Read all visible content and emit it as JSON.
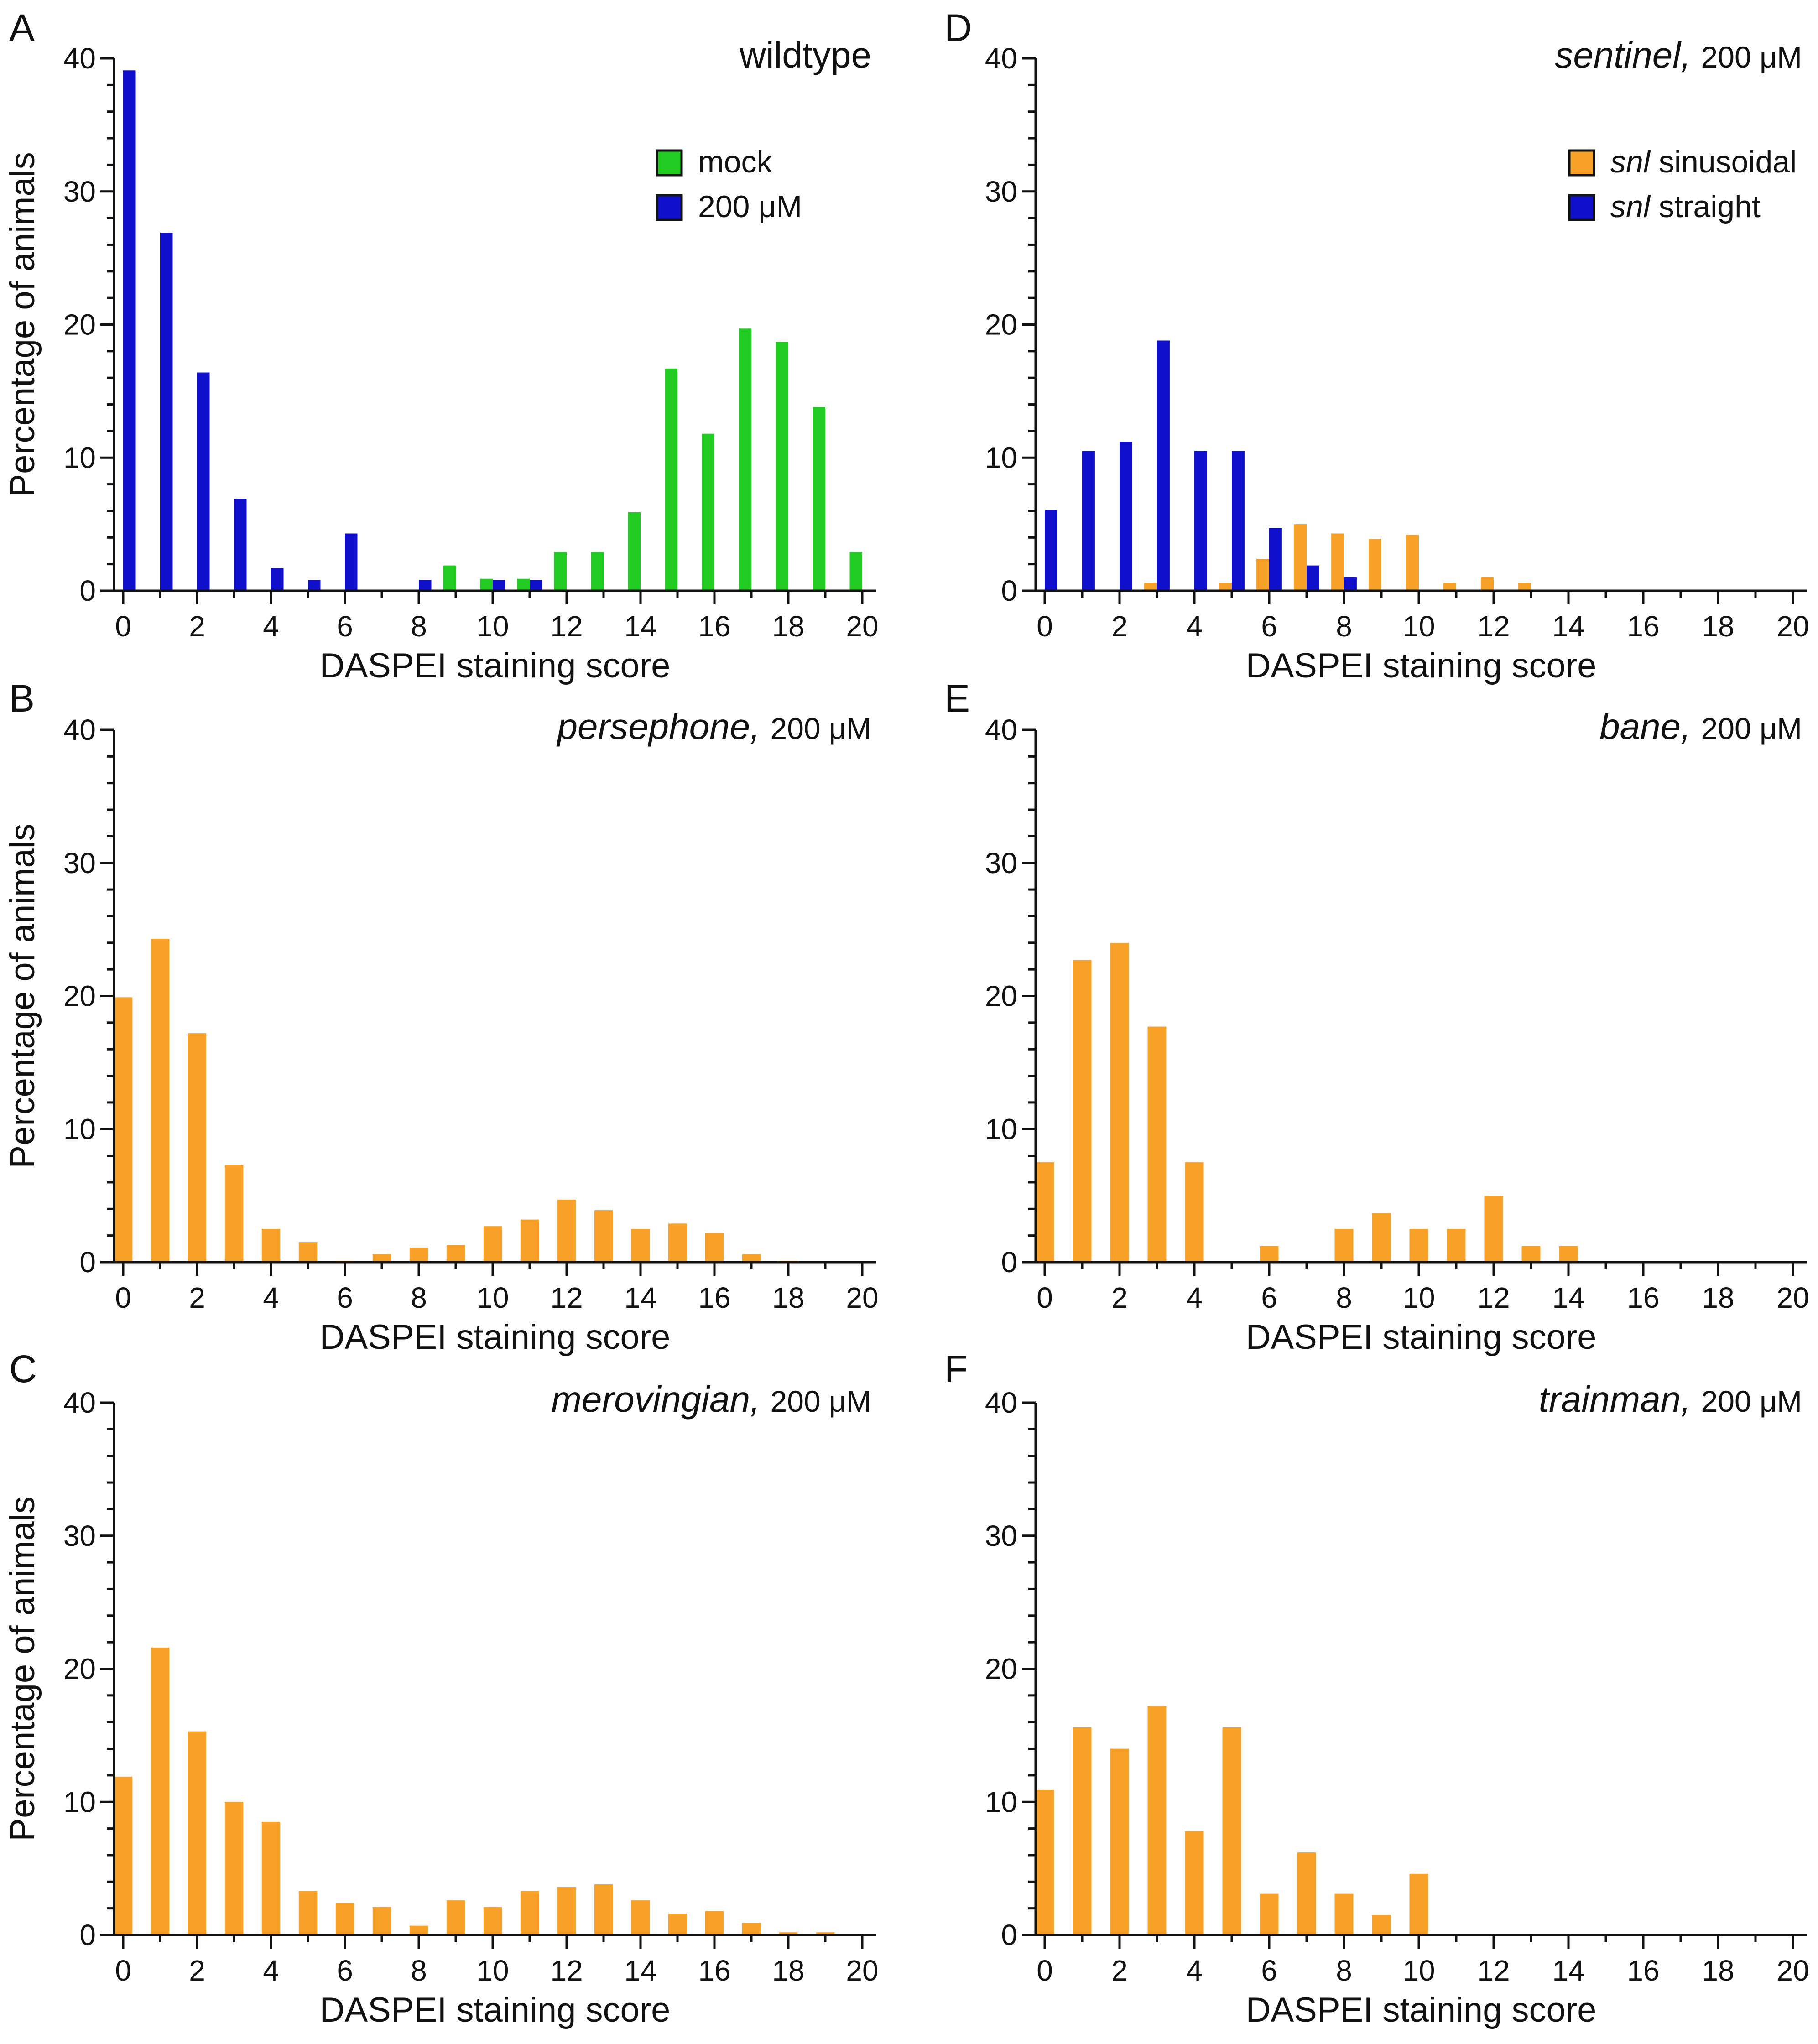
{
  "chart_data": [
    {
      "panel": "A",
      "type": "bar",
      "title_italic": "",
      "title_plain": "wildtype",
      "xlabel": "DASPEI staining score",
      "ylabel": "Percentage of animals",
      "xlim": [
        0,
        20
      ],
      "ylim": [
        0,
        40
      ],
      "xticks": [
        "0",
        "2",
        "4",
        "6",
        "8",
        "10",
        "12",
        "14",
        "16",
        "18",
        "20"
      ],
      "yticks": [
        "0",
        "10",
        "20",
        "30",
        "40"
      ],
      "legend": "top-right",
      "series": [
        {
          "name": "mock",
          "color": "#22cc22",
          "legend_italic": "",
          "legend_plain": "mock",
          "values": [
            0,
            0,
            0,
            0,
            0,
            0,
            0,
            0,
            0,
            1.9,
            0.9,
            0.9,
            2.9,
            2.9,
            5.9,
            16.7,
            11.8,
            19.7,
            18.7,
            13.8,
            2.9
          ]
        },
        {
          "name": "200 μM",
          "color": "#1010cc",
          "legend_italic": "",
          "legend_plain": "200 μM",
          "values": [
            39.1,
            26.9,
            16.4,
            6.9,
            1.7,
            0.8,
            4.3,
            0,
            0.8,
            0,
            0.8,
            0.8,
            0,
            0,
            0,
            0,
            0,
            0,
            0,
            0,
            0
          ]
        }
      ]
    },
    {
      "panel": "B",
      "type": "bar",
      "title_italic": "persephone,",
      "title_plain": "200 μM",
      "xlabel": "DASPEI staining score",
      "ylabel": "Percentage of animals",
      "xlim": [
        0,
        20
      ],
      "ylim": [
        0,
        40
      ],
      "xticks": [
        "0",
        "2",
        "4",
        "6",
        "8",
        "10",
        "12",
        "14",
        "16",
        "18",
        "20"
      ],
      "yticks": [
        "0",
        "10",
        "20",
        "30",
        "40"
      ],
      "series": [
        {
          "color": "#f7a128",
          "values": [
            19.9,
            24.3,
            17.2,
            7.3,
            2.5,
            1.5,
            0.1,
            0.6,
            1.1,
            1.3,
            2.7,
            3.2,
            4.7,
            3.9,
            2.5,
            2.9,
            2.2,
            0.6,
            0.1,
            0,
            0
          ]
        }
      ]
    },
    {
      "panel": "C",
      "type": "bar",
      "title_italic": "merovingian,",
      "title_plain": "200 μM",
      "xlabel": "DASPEI staining score",
      "ylabel": "Percentage of animals",
      "xlim": [
        0,
        20
      ],
      "ylim": [
        0,
        40
      ],
      "xticks": [
        "0",
        "2",
        "4",
        "6",
        "8",
        "10",
        "12",
        "14",
        "16",
        "18",
        "20"
      ],
      "yticks": [
        "0",
        "10",
        "20",
        "30",
        "40"
      ],
      "series": [
        {
          "color": "#f7a128",
          "values": [
            11.9,
            21.6,
            15.3,
            10.0,
            8.5,
            3.3,
            2.4,
            2.1,
            0.7,
            2.6,
            2.1,
            3.3,
            3.6,
            3.8,
            2.6,
            1.6,
            1.8,
            0.9,
            0.2,
            0.2,
            0
          ]
        }
      ]
    },
    {
      "panel": "D",
      "type": "bar",
      "title_italic": "sentinel,",
      "title_plain": "200 μM",
      "xlabel": "DASPEI staining score",
      "ylabel": "",
      "xlim": [
        0,
        20
      ],
      "ylim": [
        0,
        40
      ],
      "xticks": [
        "0",
        "2",
        "4",
        "6",
        "8",
        "10",
        "12",
        "14",
        "16",
        "18",
        "20"
      ],
      "yticks": [
        "0",
        "10",
        "20",
        "30",
        "40"
      ],
      "legend": "top-right",
      "series": [
        {
          "name": "snl sinusoidal",
          "color": "#f7a128",
          "legend_italic": "snl",
          "legend_plain": "sinusoidal",
          "values": [
            0,
            0,
            0,
            0.6,
            0,
            0.6,
            2.4,
            5.0,
            4.3,
            3.9,
            4.2,
            0.6,
            1.0,
            0.6,
            0,
            0,
            0,
            0,
            0,
            0,
            0
          ]
        },
        {
          "name": "snl straight",
          "color": "#1010cc",
          "legend_italic": "snl",
          "legend_plain": "straight",
          "values": [
            6.1,
            10.5,
            11.2,
            18.8,
            10.5,
            10.5,
            4.7,
            1.9,
            1.0,
            0,
            0,
            0,
            0,
            0,
            0,
            0,
            0,
            0,
            0,
            0,
            0
          ]
        }
      ]
    },
    {
      "panel": "E",
      "type": "bar",
      "title_italic": "bane,",
      "title_plain": "200 μM",
      "xlabel": "DASPEI staining score",
      "ylabel": "",
      "xlim": [
        0,
        20
      ],
      "ylim": [
        0,
        40
      ],
      "xticks": [
        "0",
        "2",
        "4",
        "6",
        "8",
        "10",
        "12",
        "14",
        "16",
        "18",
        "20"
      ],
      "yticks": [
        "0",
        "10",
        "20",
        "30",
        "40"
      ],
      "series": [
        {
          "color": "#f7a128",
          "values": [
            7.5,
            22.7,
            24.0,
            17.7,
            7.5,
            0,
            1.2,
            0,
            2.5,
            3.7,
            2.5,
            2.5,
            5.0,
            1.2,
            1.2,
            0,
            0,
            0,
            0,
            0,
            0
          ]
        }
      ]
    },
    {
      "panel": "F",
      "type": "bar",
      "title_italic": "trainman,",
      "title_plain": "200 μM",
      "xlabel": "DASPEI staining score",
      "ylabel": "",
      "xlim": [
        0,
        20
      ],
      "ylim": [
        0,
        40
      ],
      "xticks": [
        "0",
        "2",
        "4",
        "6",
        "8",
        "10",
        "12",
        "14",
        "16",
        "18",
        "20"
      ],
      "yticks": [
        "0",
        "10",
        "20",
        "30",
        "40"
      ],
      "series": [
        {
          "color": "#f7a128",
          "values": [
            10.9,
            15.6,
            14.0,
            17.2,
            7.8,
            15.6,
            3.1,
            6.2,
            3.1,
            1.5,
            4.6,
            0,
            0,
            0,
            0,
            0,
            0,
            0,
            0,
            0,
            0
          ]
        }
      ]
    }
  ]
}
